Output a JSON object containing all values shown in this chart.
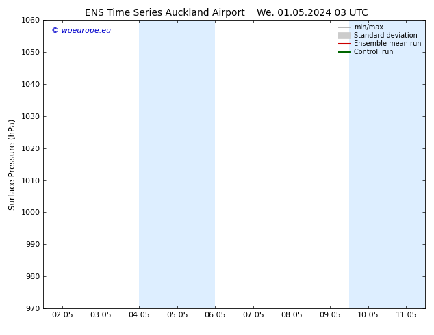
{
  "title_left": "ENS Time Series Auckland Airport",
  "title_right": "We. 01.05.2024 03 UTC",
  "ylabel": "Surface Pressure (hPa)",
  "ylim": [
    970,
    1060
  ],
  "yticks": [
    970,
    980,
    990,
    1000,
    1010,
    1020,
    1030,
    1040,
    1050,
    1060
  ],
  "xtick_labels": [
    "02.05",
    "03.05",
    "04.05",
    "05.05",
    "06.05",
    "07.05",
    "08.05",
    "09.05",
    "10.05",
    "11.05"
  ],
  "xtick_positions": [
    0,
    1,
    2,
    3,
    4,
    5,
    6,
    7,
    8,
    9
  ],
  "xlim": [
    -0.5,
    9.5
  ],
  "shaded_bands": [
    {
      "x_start": 2.0,
      "x_end": 4.0
    },
    {
      "x_start": 7.5,
      "x_end": 9.5
    }
  ],
  "shaded_color": "#ddeeff",
  "background_color": "#ffffff",
  "watermark_text": "© woeurope.eu",
  "watermark_color": "#0000cc",
  "legend_items": [
    {
      "label": "min/max",
      "color": "#aaaaaa",
      "linestyle": "-",
      "linewidth": 1.2
    },
    {
      "label": "Standard deviation",
      "color": "#cccccc",
      "linestyle": "-",
      "linewidth": 7
    },
    {
      "label": "Ensemble mean run",
      "color": "#cc0000",
      "linestyle": "-",
      "linewidth": 1.5
    },
    {
      "label": "Controll run",
      "color": "#006600",
      "linestyle": "-",
      "linewidth": 1.5
    }
  ],
  "title_fontsize": 10,
  "tick_fontsize": 8,
  "ylabel_fontsize": 8.5,
  "border_color": "#999999",
  "spine_color": "#000000"
}
